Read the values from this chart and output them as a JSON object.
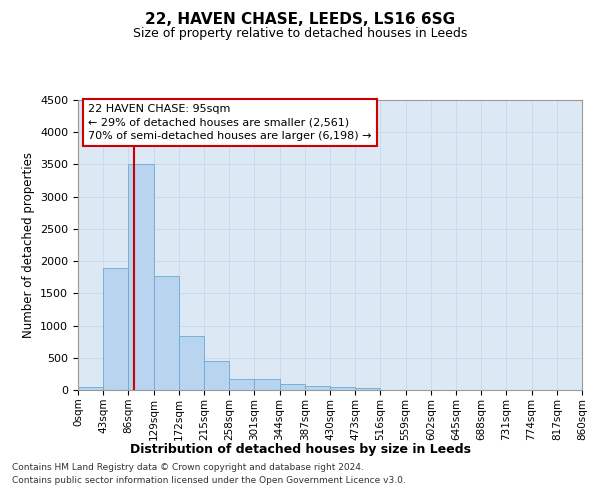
{
  "title": "22, HAVEN CHASE, LEEDS, LS16 6SG",
  "subtitle": "Size of property relative to detached houses in Leeds",
  "xlabel": "Distribution of detached houses by size in Leeds",
  "ylabel": "Number of detached properties",
  "property_label": "22 HAVEN CHASE: 95sqm",
  "annotation_line1": "← 29% of detached houses are smaller (2,561)",
  "annotation_line2": "70% of semi-detached houses are larger (6,198) →",
  "bin_edges": [
    0,
    43,
    86,
    129,
    172,
    215,
    258,
    301,
    344,
    387,
    430,
    473,
    516,
    559,
    602,
    645,
    688,
    731,
    774,
    817,
    860
  ],
  "bar_heights": [
    50,
    1900,
    3500,
    1775,
    840,
    450,
    175,
    165,
    90,
    55,
    45,
    35,
    0,
    0,
    0,
    0,
    0,
    0,
    0,
    0
  ],
  "bar_color": "#b8d4ee",
  "bar_edgecolor": "#6aaad4",
  "vline_color": "#cc0000",
  "vline_x": 95,
  "ylim": [
    0,
    4500
  ],
  "yticks": [
    0,
    500,
    1000,
    1500,
    2000,
    2500,
    3000,
    3500,
    4000,
    4500
  ],
  "grid_color": "#c8d8e8",
  "bg_color": "#dce9f5",
  "footer_line1": "Contains HM Land Registry data © Crown copyright and database right 2024.",
  "footer_line2": "Contains public sector information licensed under the Open Government Licence v3.0.",
  "annotation_box_edgecolor": "#cc0000",
  "tick_labels": [
    "0sqm",
    "43sqm",
    "86sqm",
    "129sqm",
    "172sqm",
    "215sqm",
    "258sqm",
    "301sqm",
    "344sqm",
    "387sqm",
    "430sqm",
    "473sqm",
    "516sqm",
    "559sqm",
    "602sqm",
    "645sqm",
    "688sqm",
    "731sqm",
    "774sqm",
    "817sqm",
    "860sqm"
  ]
}
